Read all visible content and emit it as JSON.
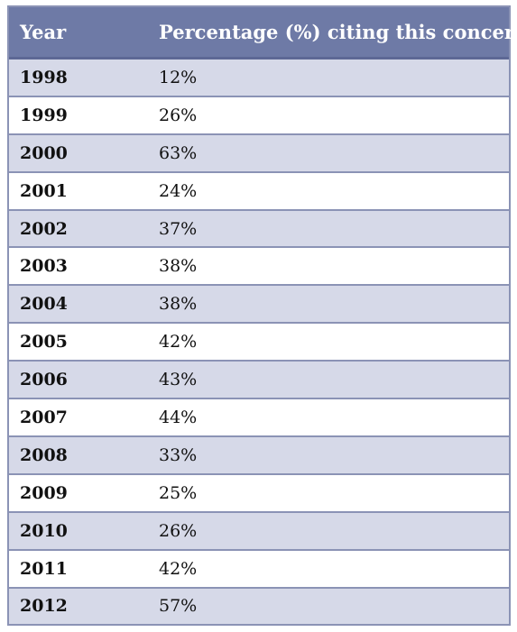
{
  "table": {
    "headers": {
      "year": "Year",
      "percentage": "Percentage (%) citing this concern"
    },
    "rows": [
      {
        "year": "1998",
        "percentage": "12%"
      },
      {
        "year": "1999",
        "percentage": "26%"
      },
      {
        "year": "2000",
        "percentage": "63%"
      },
      {
        "year": "2001",
        "percentage": "24%"
      },
      {
        "year": "2002",
        "percentage": "37%"
      },
      {
        "year": "2003",
        "percentage": "38%"
      },
      {
        "year": "2004",
        "percentage": "38%"
      },
      {
        "year": "2005",
        "percentage": "42%"
      },
      {
        "year": "2006",
        "percentage": "43%"
      },
      {
        "year": "2007",
        "percentage": "44%"
      },
      {
        "year": "2008",
        "percentage": "33%"
      },
      {
        "year": "2009",
        "percentage": "25%"
      },
      {
        "year": "2010",
        "percentage": "26%"
      },
      {
        "year": "2011",
        "percentage": "42%"
      },
      {
        "year": "2012",
        "percentage": "57%"
      }
    ]
  },
  "colors": {
    "header_bg": "#6e7aa6",
    "row_shaded": "#d6d9e8",
    "row_plain": "#ffffff",
    "border": "#8b93b5"
  }
}
